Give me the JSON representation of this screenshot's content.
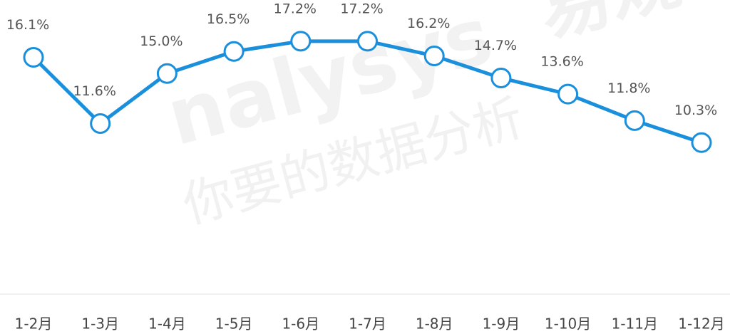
{
  "chart_data": {
    "type": "line",
    "categories": [
      "1-2月",
      "1-3月",
      "1-4月",
      "1-5月",
      "1-6月",
      "1-7月",
      "1-8月",
      "1-9月",
      "1-10月",
      "1-11月",
      "1-12月"
    ],
    "values": [
      16.1,
      11.6,
      15.0,
      16.5,
      17.2,
      17.2,
      16.2,
      14.7,
      13.6,
      11.8,
      10.3
    ],
    "value_labels": [
      "16.1%",
      "11.6%",
      "15.0%",
      "16.5%",
      "17.2%",
      "17.2%",
      "16.2%",
      "14.7%",
      "13.6%",
      "11.8%",
      "10.3%"
    ],
    "color": "#1a8fdc",
    "ylim": [
      0,
      20
    ],
    "watermark": [
      "nalysys",
      "易观",
      "你要的数据分析"
    ]
  }
}
